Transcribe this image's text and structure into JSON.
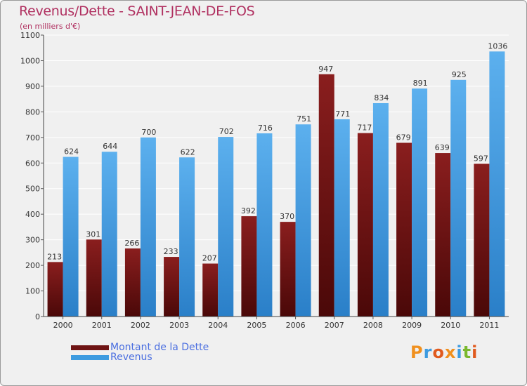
{
  "title": "Revenus/Dette - SAINT-JEAN-DE-FOS",
  "subtitle": "(en milliers d'€)",
  "colors": {
    "dette": "#6e1414",
    "revenus": "#3d9be0",
    "title": "#b03060",
    "legend_text": "#4a6ee0"
  },
  "legend": [
    {
      "label": "Montant de la Dette",
      "color": "#6e1414"
    },
    {
      "label": "Revenus",
      "color": "#3d9be0"
    }
  ],
  "logo": {
    "text": "Proxiti"
  },
  "chart_data": {
    "type": "bar",
    "categories": [
      "2000",
      "2001",
      "2002",
      "2003",
      "2004",
      "2005",
      "2006",
      "2007",
      "2008",
      "2009",
      "2010",
      "2011"
    ],
    "series": [
      {
        "name": "Montant de la Dette",
        "values": [
          213,
          301,
          266,
          233,
          207,
          392,
          370,
          947,
          717,
          679,
          639,
          597
        ]
      },
      {
        "name": "Revenus",
        "values": [
          624,
          644,
          700,
          622,
          702,
          716,
          751,
          771,
          834,
          891,
          925,
          1036
        ]
      }
    ],
    "yticks": [
      0,
      100,
      200,
      300,
      400,
      500,
      600,
      700,
      800,
      900,
      1000,
      1100
    ],
    "ylim": [
      0,
      1100
    ],
    "grid": true,
    "legend_position": "bottom-left"
  }
}
